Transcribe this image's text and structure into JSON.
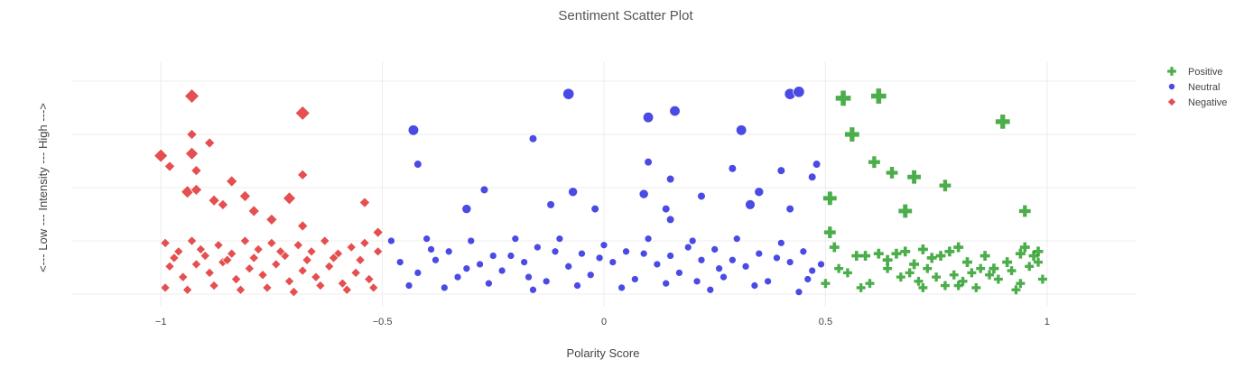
{
  "chart_data": {
    "type": "scatter",
    "title": "Sentiment Scatter Plot",
    "xlabel": "Polarity Score",
    "ylabel": "<--- Low --- Intensity --- High --->",
    "xlim": [
      -1.2,
      1.2
    ],
    "ylim": [
      0,
      1
    ],
    "x_ticks": [
      -1,
      -0.5,
      0,
      0.5,
      1
    ],
    "x_tick_labels": [
      "−1",
      "−0.5",
      "0",
      "0.5",
      "1"
    ],
    "y_ticks_shown": false,
    "grid": true,
    "legend_position": "top-right",
    "series": [
      {
        "name": "Positive",
        "marker": "cross",
        "color": "#2ca02c",
        "points": [
          [
            0.54,
            0.92,
            1.0
          ],
          [
            0.62,
            0.93,
            1.0
          ],
          [
            0.56,
            0.75,
            0.9
          ],
          [
            0.9,
            0.81,
            0.9
          ],
          [
            0.61,
            0.62,
            0.6
          ],
          [
            0.65,
            0.57,
            0.6
          ],
          [
            0.7,
            0.55,
            0.8
          ],
          [
            0.77,
            0.51,
            0.6
          ],
          [
            0.51,
            0.45,
            0.8
          ],
          [
            0.68,
            0.39,
            0.8
          ],
          [
            0.95,
            0.39,
            0.6
          ],
          [
            0.51,
            0.29,
            0.6
          ],
          [
            0.52,
            0.22,
            0.4
          ],
          [
            0.57,
            0.18,
            0.4
          ],
          [
            0.59,
            0.18,
            0.4
          ],
          [
            0.62,
            0.19,
            0.4
          ],
          [
            0.64,
            0.16,
            0.4
          ],
          [
            0.66,
            0.19,
            0.4
          ],
          [
            0.68,
            0.2,
            0.4
          ],
          [
            0.7,
            0.14,
            0.4
          ],
          [
            0.72,
            0.21,
            0.4
          ],
          [
            0.74,
            0.17,
            0.4
          ],
          [
            0.76,
            0.18,
            0.4
          ],
          [
            0.78,
            0.2,
            0.4
          ],
          [
            0.8,
            0.22,
            0.4
          ],
          [
            0.82,
            0.15,
            0.4
          ],
          [
            0.86,
            0.18,
            0.4
          ],
          [
            0.88,
            0.12,
            0.4
          ],
          [
            0.91,
            0.15,
            0.4
          ],
          [
            0.94,
            0.19,
            0.4
          ],
          [
            0.95,
            0.22,
            0.4
          ],
          [
            0.97,
            0.18,
            0.4
          ],
          [
            0.98,
            0.2,
            0.4
          ],
          [
            0.53,
            0.12,
            0.3
          ],
          [
            0.55,
            0.1,
            0.3
          ],
          [
            0.6,
            0.05,
            0.3
          ],
          [
            0.64,
            0.12,
            0.3
          ],
          [
            0.67,
            0.08,
            0.3
          ],
          [
            0.69,
            0.1,
            0.3
          ],
          [
            0.71,
            0.06,
            0.3
          ],
          [
            0.73,
            0.12,
            0.3
          ],
          [
            0.75,
            0.08,
            0.3
          ],
          [
            0.77,
            0.04,
            0.3
          ],
          [
            0.79,
            0.09,
            0.3
          ],
          [
            0.81,
            0.06,
            0.3
          ],
          [
            0.83,
            0.1,
            0.3
          ],
          [
            0.85,
            0.12,
            0.3
          ],
          [
            0.87,
            0.09,
            0.3
          ],
          [
            0.89,
            0.07,
            0.3
          ],
          [
            0.92,
            0.11,
            0.3
          ],
          [
            0.94,
            0.05,
            0.3
          ],
          [
            0.96,
            0.13,
            0.3
          ],
          [
            0.98,
            0.15,
            0.3
          ],
          [
            0.5,
            0.05,
            0.3
          ],
          [
            0.58,
            0.03,
            0.3
          ],
          [
            0.72,
            0.03,
            0.3
          ],
          [
            0.84,
            0.03,
            0.3
          ],
          [
            0.93,
            0.02,
            0.3
          ],
          [
            0.99,
            0.07,
            0.3
          ],
          [
            0.8,
            0.04,
            0.3
          ]
        ]
      },
      {
        "name": "Neutral",
        "marker": "circle",
        "color": "#2a2ae0",
        "points": [
          [
            -0.08,
            0.94,
            1.0
          ],
          [
            0.42,
            0.94,
            1.0
          ],
          [
            0.44,
            0.95,
            1.0
          ],
          [
            0.1,
            0.83,
            0.9
          ],
          [
            0.16,
            0.86,
            0.9
          ],
          [
            -0.43,
            0.77,
            0.9
          ],
          [
            0.31,
            0.77,
            0.9
          ],
          [
            -0.16,
            0.73,
            0.5
          ],
          [
            -0.42,
            0.61,
            0.5
          ],
          [
            0.1,
            0.62,
            0.5
          ],
          [
            0.29,
            0.59,
            0.5
          ],
          [
            0.4,
            0.58,
            0.5
          ],
          [
            0.48,
            0.61,
            0.5
          ],
          [
            0.15,
            0.54,
            0.5
          ],
          [
            0.47,
            0.55,
            0.5
          ],
          [
            -0.27,
            0.49,
            0.5
          ],
          [
            -0.07,
            0.48,
            0.7
          ],
          [
            0.09,
            0.47,
            0.7
          ],
          [
            0.35,
            0.48,
            0.7
          ],
          [
            0.22,
            0.46,
            0.5
          ],
          [
            -0.31,
            0.4,
            0.7
          ],
          [
            -0.12,
            0.42,
            0.5
          ],
          [
            -0.02,
            0.4,
            0.5
          ],
          [
            0.33,
            0.42,
            0.8
          ],
          [
            0.14,
            0.4,
            0.5
          ],
          [
            0.42,
            0.4,
            0.5
          ],
          [
            0.15,
            0.35,
            0.5
          ],
          [
            -0.48,
            0.25,
            0.4
          ],
          [
            -0.4,
            0.26,
            0.4
          ],
          [
            -0.35,
            0.2,
            0.4
          ],
          [
            -0.3,
            0.25,
            0.4
          ],
          [
            -0.25,
            0.18,
            0.4
          ],
          [
            -0.2,
            0.26,
            0.4
          ],
          [
            -0.15,
            0.22,
            0.4
          ],
          [
            -0.1,
            0.26,
            0.4
          ],
          [
            -0.05,
            0.19,
            0.4
          ],
          [
            0.0,
            0.23,
            0.4
          ],
          [
            0.05,
            0.2,
            0.4
          ],
          [
            0.1,
            0.26,
            0.4
          ],
          [
            0.15,
            0.18,
            0.4
          ],
          [
            0.2,
            0.25,
            0.4
          ],
          [
            0.25,
            0.21,
            0.4
          ],
          [
            0.3,
            0.26,
            0.4
          ],
          [
            0.35,
            0.19,
            0.4
          ],
          [
            0.4,
            0.24,
            0.4
          ],
          [
            0.45,
            0.2,
            0.4
          ],
          [
            -0.46,
            0.15,
            0.4
          ],
          [
            -0.42,
            0.1,
            0.4
          ],
          [
            -0.38,
            0.16,
            0.4
          ],
          [
            -0.33,
            0.08,
            0.4
          ],
          [
            -0.28,
            0.14,
            0.4
          ],
          [
            -0.23,
            0.11,
            0.4
          ],
          [
            -0.18,
            0.15,
            0.4
          ],
          [
            -0.13,
            0.06,
            0.4
          ],
          [
            -0.08,
            0.13,
            0.4
          ],
          [
            -0.03,
            0.09,
            0.4
          ],
          [
            0.02,
            0.15,
            0.4
          ],
          [
            0.07,
            0.07,
            0.4
          ],
          [
            0.12,
            0.14,
            0.4
          ],
          [
            0.17,
            0.1,
            0.4
          ],
          [
            0.22,
            0.16,
            0.4
          ],
          [
            0.27,
            0.08,
            0.4
          ],
          [
            0.32,
            0.13,
            0.4
          ],
          [
            0.37,
            0.06,
            0.4
          ],
          [
            0.42,
            0.15,
            0.4
          ],
          [
            0.47,
            0.11,
            0.4
          ],
          [
            -0.44,
            0.04,
            0.4
          ],
          [
            -0.36,
            0.03,
            0.4
          ],
          [
            -0.26,
            0.05,
            0.4
          ],
          [
            -0.16,
            0.02,
            0.4
          ],
          [
            -0.06,
            0.04,
            0.4
          ],
          [
            0.04,
            0.03,
            0.4
          ],
          [
            0.14,
            0.05,
            0.4
          ],
          [
            0.24,
            0.02,
            0.4
          ],
          [
            0.34,
            0.04,
            0.4
          ],
          [
            0.44,
            0.01,
            0.4
          ],
          [
            -0.39,
            0.21,
            0.4
          ],
          [
            -0.21,
            0.18,
            0.4
          ],
          [
            -0.01,
            0.17,
            0.4
          ],
          [
            0.19,
            0.22,
            0.4
          ],
          [
            0.39,
            0.17,
            0.4
          ],
          [
            -0.11,
            0.2,
            0.4
          ],
          [
            0.09,
            0.19,
            0.4
          ],
          [
            0.29,
            0.16,
            0.4
          ],
          [
            0.49,
            0.14,
            0.4
          ],
          [
            -0.31,
            0.12,
            0.4
          ],
          [
            0.26,
            0.12,
            0.4
          ],
          [
            -0.17,
            0.08,
            0.4
          ],
          [
            0.21,
            0.06,
            0.4
          ],
          [
            0.46,
            0.07,
            0.4
          ]
        ]
      },
      {
        "name": "Negative",
        "marker": "diamond",
        "color": "#e03030",
        "points": [
          [
            -0.93,
            0.93,
            1.0
          ],
          [
            -0.68,
            0.85,
            1.0
          ],
          [
            -0.93,
            0.75,
            0.5
          ],
          [
            -0.89,
            0.71,
            0.5
          ],
          [
            -1.0,
            0.65,
            0.9
          ],
          [
            -0.93,
            0.66,
            0.8
          ],
          [
            -0.98,
            0.6,
            0.5
          ],
          [
            -0.92,
            0.58,
            0.5
          ],
          [
            -0.84,
            0.53,
            0.6
          ],
          [
            -0.68,
            0.56,
            0.5
          ],
          [
            -0.94,
            0.48,
            0.8
          ],
          [
            -0.92,
            0.49,
            0.6
          ],
          [
            -0.81,
            0.46,
            0.6
          ],
          [
            -0.71,
            0.45,
            0.8
          ],
          [
            -0.88,
            0.44,
            0.6
          ],
          [
            -0.54,
            0.43,
            0.5
          ],
          [
            -0.86,
            0.42,
            0.5
          ],
          [
            -0.79,
            0.39,
            0.6
          ],
          [
            -0.75,
            0.35,
            0.6
          ],
          [
            -0.68,
            0.32,
            0.5
          ],
          [
            -0.51,
            0.29,
            0.5
          ],
          [
            -0.99,
            0.24,
            0.4
          ],
          [
            -0.96,
            0.2,
            0.4
          ],
          [
            -0.93,
            0.25,
            0.4
          ],
          [
            -0.9,
            0.18,
            0.4
          ],
          [
            -0.87,
            0.23,
            0.4
          ],
          [
            -0.84,
            0.19,
            0.4
          ],
          [
            -0.81,
            0.25,
            0.4
          ],
          [
            -0.78,
            0.21,
            0.4
          ],
          [
            -0.75,
            0.24,
            0.4
          ],
          [
            -0.72,
            0.18,
            0.4
          ],
          [
            -0.69,
            0.23,
            0.4
          ],
          [
            -0.66,
            0.2,
            0.4
          ],
          [
            -0.63,
            0.25,
            0.4
          ],
          [
            -0.6,
            0.19,
            0.4
          ],
          [
            -0.57,
            0.22,
            0.4
          ],
          [
            -0.54,
            0.24,
            0.4
          ],
          [
            -0.51,
            0.2,
            0.4
          ],
          [
            -0.98,
            0.13,
            0.4
          ],
          [
            -0.95,
            0.08,
            0.4
          ],
          [
            -0.92,
            0.14,
            0.4
          ],
          [
            -0.89,
            0.1,
            0.4
          ],
          [
            -0.86,
            0.15,
            0.4
          ],
          [
            -0.83,
            0.07,
            0.4
          ],
          [
            -0.8,
            0.12,
            0.4
          ],
          [
            -0.77,
            0.09,
            0.4
          ],
          [
            -0.74,
            0.14,
            0.4
          ],
          [
            -0.71,
            0.06,
            0.4
          ],
          [
            -0.68,
            0.11,
            0.4
          ],
          [
            -0.65,
            0.08,
            0.4
          ],
          [
            -0.62,
            0.13,
            0.4
          ],
          [
            -0.59,
            0.05,
            0.4
          ],
          [
            -0.56,
            0.1,
            0.4
          ],
          [
            -0.53,
            0.07,
            0.4
          ],
          [
            -0.99,
            0.03,
            0.4
          ],
          [
            -0.94,
            0.02,
            0.4
          ],
          [
            -0.88,
            0.04,
            0.4
          ],
          [
            -0.82,
            0.02,
            0.4
          ],
          [
            -0.76,
            0.03,
            0.4
          ],
          [
            -0.7,
            0.01,
            0.4
          ],
          [
            -0.64,
            0.04,
            0.4
          ],
          [
            -0.58,
            0.02,
            0.4
          ],
          [
            -0.52,
            0.03,
            0.4
          ],
          [
            -0.97,
            0.17,
            0.4
          ],
          [
            -0.91,
            0.21,
            0.4
          ],
          [
            -0.85,
            0.16,
            0.4
          ],
          [
            -0.79,
            0.17,
            0.4
          ],
          [
            -0.73,
            0.2,
            0.4
          ],
          [
            -0.67,
            0.16,
            0.4
          ],
          [
            -0.61,
            0.17,
            0.4
          ],
          [
            -0.55,
            0.16,
            0.4
          ]
        ]
      }
    ]
  }
}
